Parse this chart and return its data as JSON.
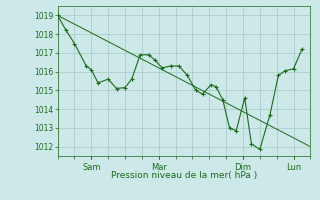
{
  "xlabel": "Pression niveau de la mer( hPa )",
  "ylim": [
    1011.5,
    1019.5
  ],
  "yticks": [
    1012,
    1013,
    1014,
    1015,
    1016,
    1017,
    1018,
    1019
  ],
  "background_color": "#cde8e8",
  "grid_color": "#a8c8c8",
  "line_color": "#1a6b1a",
  "xlim": [
    0,
    7.5
  ],
  "xtick_labels_named": [
    "Sam",
    "Mar",
    "Dim",
    "Lun"
  ],
  "xtick_named_pos": [
    1.0,
    3.0,
    5.5,
    7.0
  ],
  "line1_x": [
    0.0,
    0.25,
    0.5,
    0.85,
    1.0,
    1.2,
    1.5,
    1.75,
    2.0,
    2.2,
    2.45,
    2.7,
    2.9,
    3.1,
    3.35,
    3.6,
    3.85,
    4.1,
    4.3,
    4.55,
    4.7,
    4.9,
    5.1,
    5.3,
    5.55,
    5.75,
    6.0,
    6.3,
    6.55,
    6.75,
    7.0,
    7.25
  ],
  "line1_y": [
    1019.0,
    1018.2,
    1017.5,
    1016.3,
    1016.1,
    1015.4,
    1015.6,
    1015.1,
    1015.15,
    1015.6,
    1016.9,
    1016.9,
    1016.6,
    1016.2,
    1016.3,
    1016.3,
    1015.8,
    1015.0,
    1014.8,
    1015.3,
    1015.2,
    1014.5,
    1013.0,
    1012.85,
    1014.6,
    1012.15,
    1011.85,
    1013.7,
    1015.8,
    1016.05,
    1016.15,
    1017.2
  ],
  "line2_x": [
    0.0,
    7.5
  ],
  "line2_y": [
    1019.0,
    1012.0
  ],
  "figsize": [
    3.2,
    2.0
  ],
  "dpi": 100
}
